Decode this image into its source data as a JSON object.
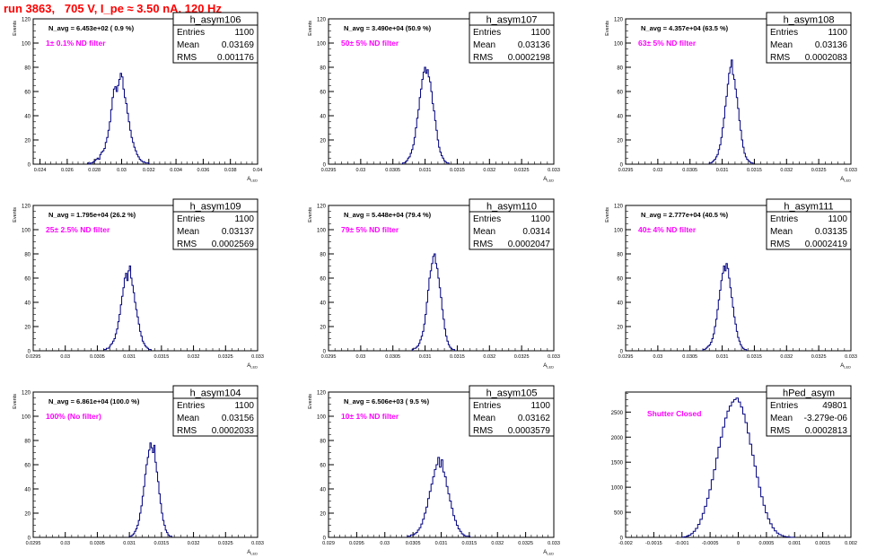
{
  "header": {
    "run_title": "run 3863,   705 V, I_pe ≈ 3.50 nA, 120 Hz"
  },
  "colors": {
    "histogram": "#00007f",
    "annotation": "#ff00ff",
    "header": "#ff0000",
    "frame": "#000000"
  },
  "stat_labels": {
    "entries": "Entries",
    "mean": "Mean",
    "rms": "RMS"
  },
  "chart_data": [
    {
      "type": "histogram",
      "name": "h_asym106",
      "ylabel": "Events",
      "xlabel": "A_LED",
      "navg": "N_avg = 6.453e+02 ( 0.9 %)",
      "filter": "1± 0.1% ND filter",
      "entries": "1100",
      "mean": "0.03169",
      "rms": "0.001176",
      "xlim": [
        0.0235,
        0.04
      ],
      "ylim": [
        0,
        120
      ],
      "yticks": [
        0,
        20,
        40,
        60,
        80,
        100,
        120
      ],
      "xticks": [
        0.024,
        0.026,
        0.028,
        0.03,
        0.032,
        0.034,
        0.036,
        0.038,
        0.04
      ],
      "xticklabels": [
        "0.024",
        "0.026",
        "0.028",
        "0.03",
        "0.032",
        "0.034",
        "0.036",
        "0.038",
        "0.04"
      ],
      "bin_start": 0.0275,
      "bin_width": 0.0001,
      "counts": [
        1,
        0,
        1,
        1,
        2,
        3,
        4,
        5,
        4,
        8,
        10,
        11,
        13,
        18,
        22,
        28,
        35,
        45,
        55,
        62,
        64,
        60,
        65,
        70,
        75,
        72,
        62,
        55,
        50,
        42,
        35,
        28,
        22,
        18,
        14,
        11,
        8,
        6,
        4,
        3,
        2,
        2,
        1,
        1,
        1
      ]
    },
    {
      "type": "histogram",
      "name": "h_asym107",
      "ylabel": "Events",
      "xlabel": "A_LED",
      "navg": "N_avg = 3.490e+04 (50.9 %)",
      "filter": "50± 5% ND filter",
      "entries": "1100",
      "mean": "0.03136",
      "rms": "0.0002198",
      "xlim": [
        0.0295,
        0.033
      ],
      "ylim": [
        0,
        120
      ],
      "yticks": [
        0,
        20,
        40,
        60,
        80,
        100,
        120
      ],
      "xticks": [
        0.0295,
        0.03,
        0.0305,
        0.031,
        0.0315,
        0.032,
        0.0325,
        0.033
      ],
      "xticklabels": [
        "0.0295",
        "0.03",
        "0.0305",
        "0.031",
        "0.0315",
        "0.032",
        "0.0325",
        "0.033"
      ],
      "bin_start": 0.03065,
      "bin_width": 2e-05,
      "counts": [
        1,
        1,
        2,
        3,
        5,
        6,
        9,
        12,
        16,
        22,
        30,
        38,
        45,
        55,
        62,
        70,
        76,
        80,
        75,
        78,
        72,
        68,
        60,
        50,
        44,
        36,
        28,
        20,
        14,
        10,
        7,
        5,
        3,
        2,
        1,
        1
      ]
    },
    {
      "type": "histogram",
      "name": "h_asym108",
      "ylabel": "Events",
      "xlabel": "A_LED",
      "navg": "N_avg = 4.357e+04 (63.5 %)",
      "filter": "63± 5% ND filter",
      "entries": "1100",
      "mean": "0.03136",
      "rms": "0.0002083",
      "xlim": [
        0.0295,
        0.033
      ],
      "ylim": [
        0,
        120
      ],
      "yticks": [
        0,
        20,
        40,
        60,
        80,
        100,
        120
      ],
      "xticks": [
        0.0295,
        0.03,
        0.0305,
        0.031,
        0.0315,
        0.032,
        0.0325,
        0.033
      ],
      "xticklabels": [
        "0.0295",
        "0.03",
        "0.0305",
        "0.031",
        "0.0315",
        "0.032",
        "0.0325",
        "0.033"
      ],
      "bin_start": 0.0308,
      "bin_width": 2e-05,
      "counts": [
        1,
        1,
        2,
        3,
        4,
        6,
        8,
        12,
        16,
        22,
        30,
        38,
        48,
        56,
        66,
        75,
        80,
        86,
        74,
        70,
        62,
        55,
        46,
        36,
        28,
        20,
        14,
        9,
        6,
        4,
        3,
        2,
        1,
        1
      ]
    },
    {
      "type": "histogram",
      "name": "h_asym109",
      "ylabel": "Events",
      "xlabel": "A_LED",
      "navg": "N_avg = 1.795e+04 (26.2 %)",
      "filter": "25± 2.5% ND filter",
      "entries": "1100",
      "mean": "0.03137",
      "rms": "0.0002569",
      "xlim": [
        0.0295,
        0.033
      ],
      "ylim": [
        0,
        120
      ],
      "yticks": [
        0,
        20,
        40,
        60,
        80,
        100,
        120
      ],
      "xticks": [
        0.0295,
        0.03,
        0.0305,
        0.031,
        0.0315,
        0.032,
        0.0325,
        0.033
      ],
      "xticklabels": [
        "0.0295",
        "0.03",
        "0.0305",
        "0.031",
        "0.0315",
        "0.032",
        "0.0325",
        "0.033"
      ],
      "bin_start": 0.0306,
      "bin_width": 2e-05,
      "counts": [
        1,
        1,
        2,
        2,
        3,
        5,
        6,
        8,
        10,
        14,
        18,
        24,
        30,
        38,
        45,
        52,
        60,
        64,
        58,
        66,
        70,
        60,
        54,
        48,
        40,
        34,
        28,
        22,
        16,
        12,
        8,
        6,
        4,
        3,
        2,
        1,
        1
      ]
    },
    {
      "type": "histogram",
      "name": "h_asym110",
      "ylabel": "Events",
      "xlabel": "A_LED",
      "navg": "N_avg = 5.448e+04 (79.4 %)",
      "filter": "79± 5% ND filter",
      "entries": "1100",
      "mean": "0.0314",
      "rms": "0.0002047",
      "xlim": [
        0.0295,
        0.033
      ],
      "ylim": [
        0,
        120
      ],
      "yticks": [
        0,
        20,
        40,
        60,
        80,
        100,
        120
      ],
      "xticks": [
        0.0295,
        0.03,
        0.0305,
        0.031,
        0.0315,
        0.032,
        0.0325,
        0.033
      ],
      "xticklabels": [
        "0.0295",
        "0.03",
        "0.0305",
        "0.031",
        "0.0315",
        "0.032",
        "0.0325",
        "0.033"
      ],
      "bin_start": 0.0308,
      "bin_width": 2e-05,
      "counts": [
        1,
        2,
        2,
        3,
        4,
        6,
        9,
        12,
        16,
        22,
        30,
        40,
        50,
        60,
        66,
        72,
        78,
        80,
        72,
        68,
        60,
        52,
        44,
        34,
        26,
        18,
        12,
        8,
        5,
        3,
        2,
        1,
        1
      ]
    },
    {
      "type": "histogram",
      "name": "h_asym111",
      "ylabel": "Events",
      "xlabel": "A_LED",
      "navg": "N_avg = 2.777e+04 (40.5 %)",
      "filter": "40± 4% ND filter",
      "entries": "1100",
      "mean": "0.03135",
      "rms": "0.0002419",
      "xlim": [
        0.0295,
        0.033
      ],
      "ylim": [
        0,
        120
      ],
      "yticks": [
        0,
        20,
        40,
        60,
        80,
        100,
        120
      ],
      "xticks": [
        0.0295,
        0.03,
        0.0305,
        0.031,
        0.0315,
        0.032,
        0.0325,
        0.033
      ],
      "xticklabels": [
        "0.0295",
        "0.03",
        "0.0305",
        "0.031",
        "0.0315",
        "0.032",
        "0.0325",
        "0.033"
      ],
      "bin_start": 0.0307,
      "bin_width": 2e-05,
      "counts": [
        1,
        1,
        2,
        3,
        4,
        5,
        7,
        10,
        14,
        20,
        26,
        34,
        42,
        50,
        58,
        64,
        70,
        66,
        72,
        68,
        60,
        52,
        44,
        36,
        28,
        22,
        16,
        11,
        8,
        5,
        3,
        2,
        1,
        1
      ]
    },
    {
      "type": "histogram",
      "name": "h_asym104",
      "ylabel": "Events",
      "xlabel": "A_LED",
      "navg": "N_avg = 6.861e+04 (100.0 %)",
      "filter": "100% (No filter)",
      "entries": "1100",
      "mean": "0.03156",
      "rms": "0.0002033",
      "xlim": [
        0.0295,
        0.033
      ],
      "ylim": [
        0,
        120
      ],
      "yticks": [
        0,
        20,
        40,
        60,
        80,
        100,
        120
      ],
      "xticks": [
        0.0295,
        0.03,
        0.0305,
        0.031,
        0.0315,
        0.032,
        0.0325,
        0.033
      ],
      "xticklabels": [
        "0.0295",
        "0.03",
        "0.0305",
        "0.031",
        "0.0315",
        "0.032",
        "0.0325",
        "0.033"
      ],
      "bin_start": 0.031,
      "bin_width": 2e-05,
      "counts": [
        1,
        1,
        2,
        3,
        5,
        7,
        10,
        14,
        20,
        26,
        34,
        42,
        52,
        60,
        66,
        72,
        78,
        74,
        70,
        76,
        62,
        54,
        46,
        36,
        28,
        20,
        14,
        10,
        6,
        4,
        2,
        1,
        1
      ]
    },
    {
      "type": "histogram",
      "name": "h_asym105",
      "ylabel": "Events",
      "xlabel": "A_LED",
      "navg": "N_avg = 6.506e+03 ( 9.5 %)",
      "filter": "10± 1% ND filter",
      "entries": "1100",
      "mean": "0.03162",
      "rms": "0.0003579",
      "xlim": [
        0.029,
        0.033
      ],
      "ylim": [
        0,
        120
      ],
      "yticks": [
        0,
        20,
        40,
        60,
        80,
        100,
        120
      ],
      "xticks": [
        0.029,
        0.0295,
        0.03,
        0.0305,
        0.031,
        0.0315,
        0.032,
        0.0325,
        0.033
      ],
      "xticklabels": [
        "0.029",
        "0.0295",
        "0.03",
        "0.0305",
        "0.031",
        "0.0315",
        "0.032",
        "0.0325",
        "0.033"
      ],
      "bin_start": 0.0304,
      "bin_width": 3e-05,
      "counts": [
        1,
        1,
        2,
        2,
        3,
        4,
        6,
        8,
        11,
        15,
        20,
        25,
        32,
        38,
        44,
        50,
        56,
        60,
        66,
        58,
        64,
        54,
        50,
        42,
        36,
        30,
        24,
        18,
        14,
        10,
        7,
        5,
        3,
        2,
        1,
        1,
        1
      ]
    },
    {
      "type": "histogram",
      "name": "hPed_asym",
      "ylabel": "",
      "xlabel": "",
      "navg": "",
      "filter": "Shutter Closed",
      "entries": "49801",
      "mean": "-3.279e-06",
      "rms": "0.0002813",
      "xlim": [
        -0.002,
        0.002
      ],
      "ylim": [
        0,
        2900
      ],
      "yticks": [
        0,
        500,
        1000,
        1500,
        2000,
        2500
      ],
      "xticks": [
        -0.002,
        -0.0015,
        -0.001,
        -0.0005,
        0,
        0.0005,
        0.001,
        0.0015,
        0.002
      ],
      "xticklabels": [
        "-0.002",
        "-0.0015",
        "-0.001",
        "-0.0005",
        "0",
        "0.0005",
        "0.001",
        "0.0015",
        "0.002"
      ],
      "bin_start": -0.001,
      "bin_width": 4e-05,
      "counts": [
        5,
        12,
        25,
        45,
        75,
        120,
        180,
        260,
        360,
        480,
        620,
        780,
        950,
        1150,
        1350,
        1580,
        1800,
        2000,
        2200,
        2380,
        2520,
        2620,
        2700,
        2750,
        2780,
        2700,
        2600,
        2460,
        2290,
        2080,
        1860,
        1640,
        1420,
        1200,
        1000,
        810,
        640,
        490,
        370,
        270,
        190,
        130,
        85,
        55,
        33,
        20,
        12,
        6,
        3,
        2
      ]
    }
  ]
}
